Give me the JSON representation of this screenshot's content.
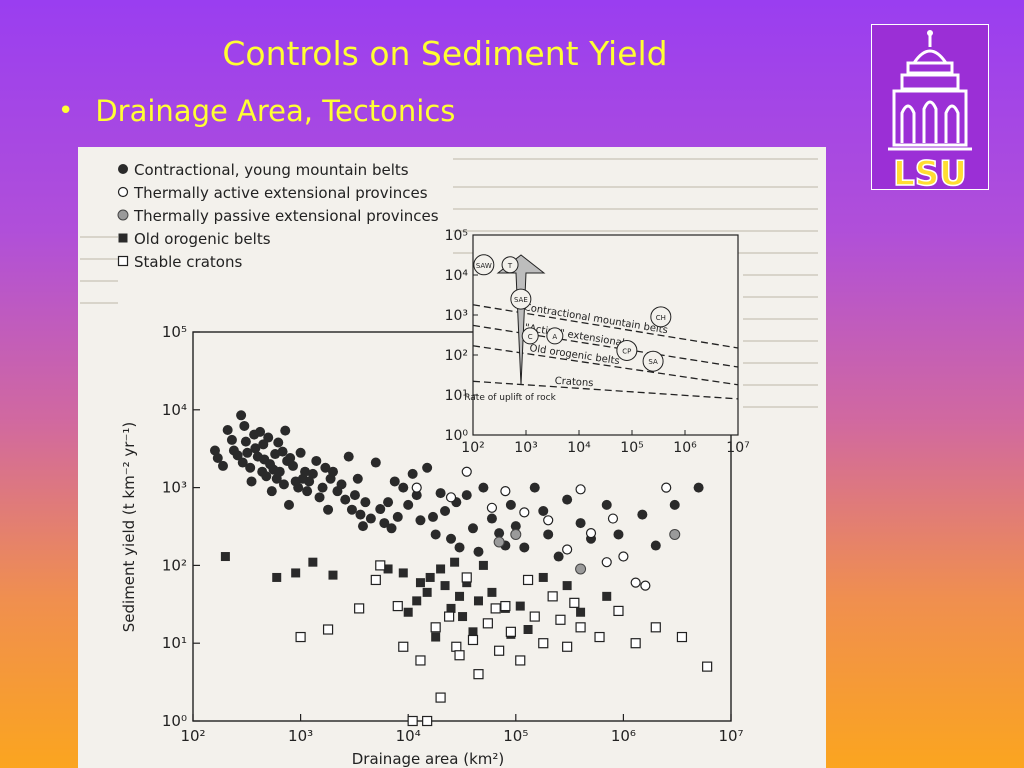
{
  "slide": {
    "title": "Controls on Sediment Yield",
    "bullet": "Drainage Area, Tectonics",
    "logo_text": "LSU"
  },
  "colors": {
    "title_text": "#ffff33",
    "background_top": "#9a3ef0",
    "background_bottom": "#fba51f",
    "logo_bg": "#9b2fd6",
    "logo_gold": "#ffdd33",
    "ink": "#222222"
  },
  "chart_data": [
    {
      "type": "scatter",
      "title": "",
      "xlabel": "Drainage area (km²)",
      "ylabel": "Sediment yield (t km⁻² yr⁻¹)",
      "xscale": "log",
      "yscale": "log",
      "xlim": [
        100,
        10000000
      ],
      "ylim": [
        1,
        100000
      ],
      "xticks": [
        "10²",
        "10³",
        "10⁴",
        "10⁵",
        "10⁶",
        "10⁷"
      ],
      "yticks": [
        "10⁰",
        "10¹",
        "10²",
        "10³",
        "10⁴",
        "10⁵"
      ],
      "legend_placement": "top-left, above plot",
      "grid": false,
      "series": [
        {
          "name": "Contractional, young mountain belts",
          "marker": "filled-circle",
          "points": [
            [
              160,
              3000
            ],
            [
              170,
              2400
            ],
            [
              190,
              1900
            ],
            [
              210,
              5500
            ],
            [
              230,
              4100
            ],
            [
              240,
              3000
            ],
            [
              260,
              2600
            ],
            [
              280,
              8500
            ],
            [
              290,
              2100
            ],
            [
              300,
              6200
            ],
            [
              310,
              3900
            ],
            [
              320,
              2800
            ],
            [
              340,
              1800
            ],
            [
              350,
              1200
            ],
            [
              370,
              4800
            ],
            [
              380,
              3200
            ],
            [
              400,
              2500
            ],
            [
              420,
              5200
            ],
            [
              440,
              1600
            ],
            [
              450,
              3600
            ],
            [
              460,
              2300
            ],
            [
              480,
              1400
            ],
            [
              500,
              4400
            ],
            [
              520,
              2000
            ],
            [
              540,
              900
            ],
            [
              560,
              1700
            ],
            [
              580,
              2700
            ],
            [
              600,
              1300
            ],
            [
              620,
              3800
            ],
            [
              640,
              1600
            ],
            [
              680,
              2900
            ],
            [
              700,
              1100
            ],
            [
              720,
              5400
            ],
            [
              750,
              2200
            ],
            [
              780,
              600
            ],
            [
              800,
              2400
            ],
            [
              850,
              1900
            ],
            [
              900,
              1200
            ],
            [
              950,
              1000
            ],
            [
              1000,
              2800
            ],
            [
              1050,
              1300
            ],
            [
              1100,
              1600
            ],
            [
              1150,
              900
            ],
            [
              1200,
              1200
            ],
            [
              1300,
              1500
            ],
            [
              1400,
              2200
            ],
            [
              1500,
              750
            ],
            [
              1600,
              1000
            ],
            [
              1700,
              1800
            ],
            [
              1800,
              520
            ],
            [
              1900,
              1300
            ],
            [
              2000,
              1600
            ],
            [
              2200,
              900
            ],
            [
              2400,
              1100
            ],
            [
              2600,
              700
            ],
            [
              2800,
              2500
            ],
            [
              3000,
              520
            ],
            [
              3200,
              800
            ],
            [
              3400,
              1300
            ],
            [
              3600,
              450
            ],
            [
              3800,
              320
            ],
            [
              4000,
              650
            ],
            [
              4500,
              400
            ],
            [
              5000,
              2100
            ],
            [
              5500,
              530
            ],
            [
              6000,
              350
            ],
            [
              6500,
              650
            ],
            [
              7000,
              300
            ],
            [
              7500,
              1200
            ],
            [
              8000,
              420
            ],
            [
              9000,
              1000
            ],
            [
              10000,
              600
            ],
            [
              11000,
              1500
            ],
            [
              12000,
              800
            ],
            [
              13000,
              380
            ],
            [
              15000,
              1800
            ],
            [
              17000,
              420
            ],
            [
              18000,
              250
            ],
            [
              20000,
              850
            ],
            [
              22000,
              500
            ],
            [
              25000,
              220
            ],
            [
              28000,
              650
            ],
            [
              30000,
              170
            ],
            [
              35000,
              800
            ],
            [
              40000,
              300
            ],
            [
              45000,
              150
            ],
            [
              50000,
              1000
            ],
            [
              60000,
              400
            ],
            [
              70000,
              260
            ],
            [
              80000,
              180
            ],
            [
              90000,
              600
            ],
            [
              100000,
              320
            ],
            [
              120000,
              170
            ],
            [
              150000,
              1000
            ],
            [
              180000,
              500
            ],
            [
              200000,
              250
            ],
            [
              250000,
              130
            ],
            [
              300000,
              700
            ],
            [
              400000,
              350
            ],
            [
              500000,
              220
            ],
            [
              700000,
              600
            ],
            [
              900000,
              250
            ],
            [
              1500000,
              450
            ],
            [
              2000000,
              180
            ],
            [
              3000000,
              600
            ],
            [
              5000000,
              1000
            ]
          ]
        },
        {
          "name": "Thermally active extensional provinces",
          "marker": "open-circle",
          "points": [
            [
              12000,
              1000
            ],
            [
              25000,
              750
            ],
            [
              35000,
              1600
            ],
            [
              60000,
              550
            ],
            [
              80000,
              900
            ],
            [
              120000,
              480
            ],
            [
              200000,
              380
            ],
            [
              300000,
              160
            ],
            [
              400000,
              950
            ],
            [
              500000,
              260
            ],
            [
              700000,
              110
            ],
            [
              800000,
              400
            ],
            [
              1000000,
              130
            ],
            [
              1300000,
              60
            ],
            [
              1600000,
              55
            ],
            [
              2500000,
              1000
            ]
          ]
        },
        {
          "name": "Thermally passive extensional provinces",
          "marker": "grey-circle",
          "points": [
            [
              70000,
              200
            ],
            [
              100000,
              250
            ],
            [
              400000,
              90
            ],
            [
              3000000,
              250
            ]
          ]
        },
        {
          "name": "Old orogenic belts",
          "marker": "filled-square",
          "points": [
            [
              200,
              130
            ],
            [
              600,
              70
            ],
            [
              900,
              80
            ],
            [
              1300,
              110
            ],
            [
              2000,
              75
            ],
            [
              6500,
              90
            ],
            [
              9000,
              80
            ],
            [
              10000,
              25
            ],
            [
              12000,
              35
            ],
            [
              13000,
              60
            ],
            [
              15000,
              45
            ],
            [
              16000,
              70
            ],
            [
              18000,
              12
            ],
            [
              20000,
              90
            ],
            [
              22000,
              55
            ],
            [
              25000,
              28
            ],
            [
              27000,
              110
            ],
            [
              30000,
              40
            ],
            [
              32000,
              22
            ],
            [
              35000,
              60
            ],
            [
              40000,
              14
            ],
            [
              45000,
              35
            ],
            [
              50000,
              100
            ],
            [
              55000,
              18
            ],
            [
              60000,
              45
            ],
            [
              70000,
              8
            ],
            [
              80000,
              28
            ],
            [
              90000,
              13
            ],
            [
              110000,
              30
            ],
            [
              130000,
              15
            ],
            [
              180000,
              70
            ],
            [
              220000,
              40
            ],
            [
              300000,
              55
            ],
            [
              400000,
              25
            ],
            [
              700000,
              40
            ]
          ]
        },
        {
          "name": "Stable cratons",
          "marker": "open-square",
          "points": [
            [
              1000,
              12
            ],
            [
              1800,
              15
            ],
            [
              3500,
              28
            ],
            [
              5000,
              65
            ],
            [
              5500,
              100
            ],
            [
              8000,
              30
            ],
            [
              9000,
              9
            ],
            [
              11000,
              1
            ],
            [
              13000,
              6
            ],
            [
              15000,
              1
            ],
            [
              18000,
              16
            ],
            [
              20000,
              2
            ],
            [
              24000,
              22
            ],
            [
              28000,
              9
            ],
            [
              30000,
              7
            ],
            [
              35000,
              70
            ],
            [
              40000,
              11
            ],
            [
              45000,
              4
            ],
            [
              55000,
              18
            ],
            [
              65000,
              28
            ],
            [
              70000,
              8
            ],
            [
              80000,
              30
            ],
            [
              90000,
              14
            ],
            [
              110000,
              6
            ],
            [
              130000,
              65
            ],
            [
              150000,
              22
            ],
            [
              180000,
              10
            ],
            [
              220000,
              40
            ],
            [
              260000,
              20
            ],
            [
              300000,
              9
            ],
            [
              350000,
              33
            ],
            [
              400000,
              16
            ],
            [
              600000,
              12
            ],
            [
              900000,
              26
            ],
            [
              1300000,
              10
            ],
            [
              2000000,
              16
            ],
            [
              3500000,
              12
            ],
            [
              6000000,
              5
            ]
          ]
        }
      ]
    },
    {
      "type": "line",
      "title": "",
      "note": "inset schematic",
      "xscale": "log",
      "yscale": "log",
      "xlim": [
        100,
        10000000
      ],
      "ylim": [
        1,
        100000
      ],
      "xticks": [
        "10²",
        "10³",
        "10⁴",
        "10⁵",
        "10⁶",
        "10⁷"
      ],
      "yticks": [
        "10⁰",
        "10¹",
        "10²",
        "10³",
        "10⁴",
        "10⁵"
      ],
      "series": [
        {
          "name": "Contractional mountain belts",
          "x": [
            100,
            10000000
          ],
          "y": [
            1800,
            150
          ]
        },
        {
          "name": "\"Active\" extensional",
          "x": [
            100,
            10000000
          ],
          "y": [
            550,
            50
          ]
        },
        {
          "name": "Old orogenic belts",
          "x": [
            100,
            10000000
          ],
          "y": [
            170,
            18
          ]
        },
        {
          "name": "Cratons",
          "x": [
            100,
            10000000
          ],
          "y": [
            22,
            8
          ]
        }
      ],
      "circle_labels": [
        {
          "label": "SAW",
          "x": 160,
          "y": 18000
        },
        {
          "label": "T",
          "x": 500,
          "y": 18000
        },
        {
          "label": "SAE",
          "x": 800,
          "y": 2500
        },
        {
          "label": "CH",
          "x": 350000,
          "y": 900
        },
        {
          "label": "C",
          "x": 1200,
          "y": 300
        },
        {
          "label": "A",
          "x": 3500,
          "y": 300
        },
        {
          "label": "CP",
          "x": 80000,
          "y": 130
        },
        {
          "label": "SA",
          "x": 250000,
          "y": 70
        }
      ],
      "arrow_label": "Rate of uplift of rock"
    }
  ]
}
